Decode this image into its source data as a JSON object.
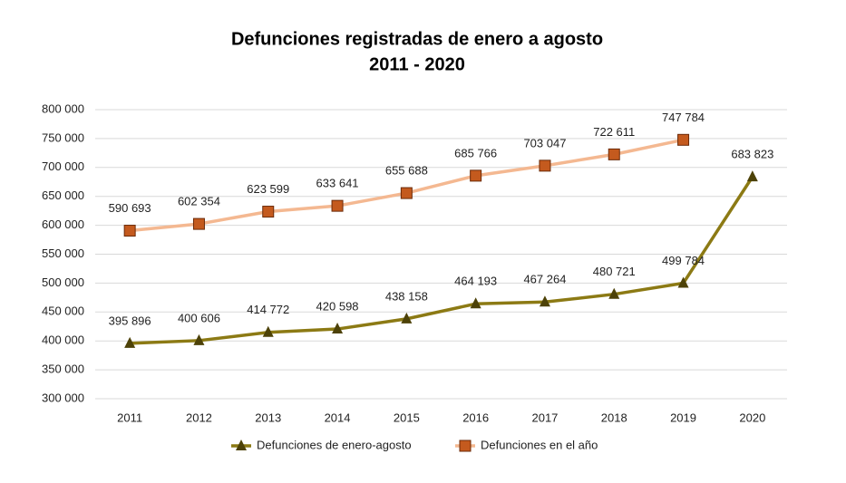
{
  "chart_data": {
    "type": "line",
    "title": "Defunciones registradas de enero a agosto",
    "subtitle": "2011 - 2020",
    "categories": [
      "2011",
      "2012",
      "2013",
      "2014",
      "2015",
      "2016",
      "2017",
      "2018",
      "2019",
      "2020"
    ],
    "series": [
      {
        "name": "Defunciones de enero-agosto",
        "color": "#8c7a14",
        "marker": "triangle",
        "marker_color": "#4d4208",
        "values": [
          395896,
          400606,
          414772,
          420598,
          438158,
          464193,
          467264,
          480721,
          499784,
          683823
        ],
        "value_labels": [
          "395 896",
          "400 606",
          "414 772",
          "420 598",
          "438 158",
          "464 193",
          "467 264",
          "480 721",
          "499 784",
          "683 823"
        ]
      },
      {
        "name": "Defunciones en el año",
        "color": "#f4b891",
        "marker": "square",
        "marker_color": "#c45a1e",
        "values": [
          590693,
          602354,
          623599,
          633641,
          655688,
          685766,
          703047,
          722611,
          747784,
          null
        ],
        "value_labels": [
          "590 693",
          "602 354",
          "623 599",
          "633 641",
          "655 688",
          "685 766",
          "703 047",
          "722 611",
          "747 784",
          null
        ]
      }
    ],
    "ylim": [
      300000,
      800000
    ],
    "yticks": [
      {
        "value": 300000,
        "label": "300 000"
      },
      {
        "value": 350000,
        "label": "350 000"
      },
      {
        "value": 400000,
        "label": "400 000"
      },
      {
        "value": 450000,
        "label": "450 000"
      },
      {
        "value": 500000,
        "label": "500 000"
      },
      {
        "value": 550000,
        "label": "550 000"
      },
      {
        "value": 600000,
        "label": "600 000"
      },
      {
        "value": 650000,
        "label": "650 000"
      },
      {
        "value": 700000,
        "label": "700 000"
      },
      {
        "value": 750000,
        "label": "750 000"
      },
      {
        "value": 800000,
        "label": "800 000"
      }
    ],
    "grid": true,
    "legend": "bottom"
  }
}
